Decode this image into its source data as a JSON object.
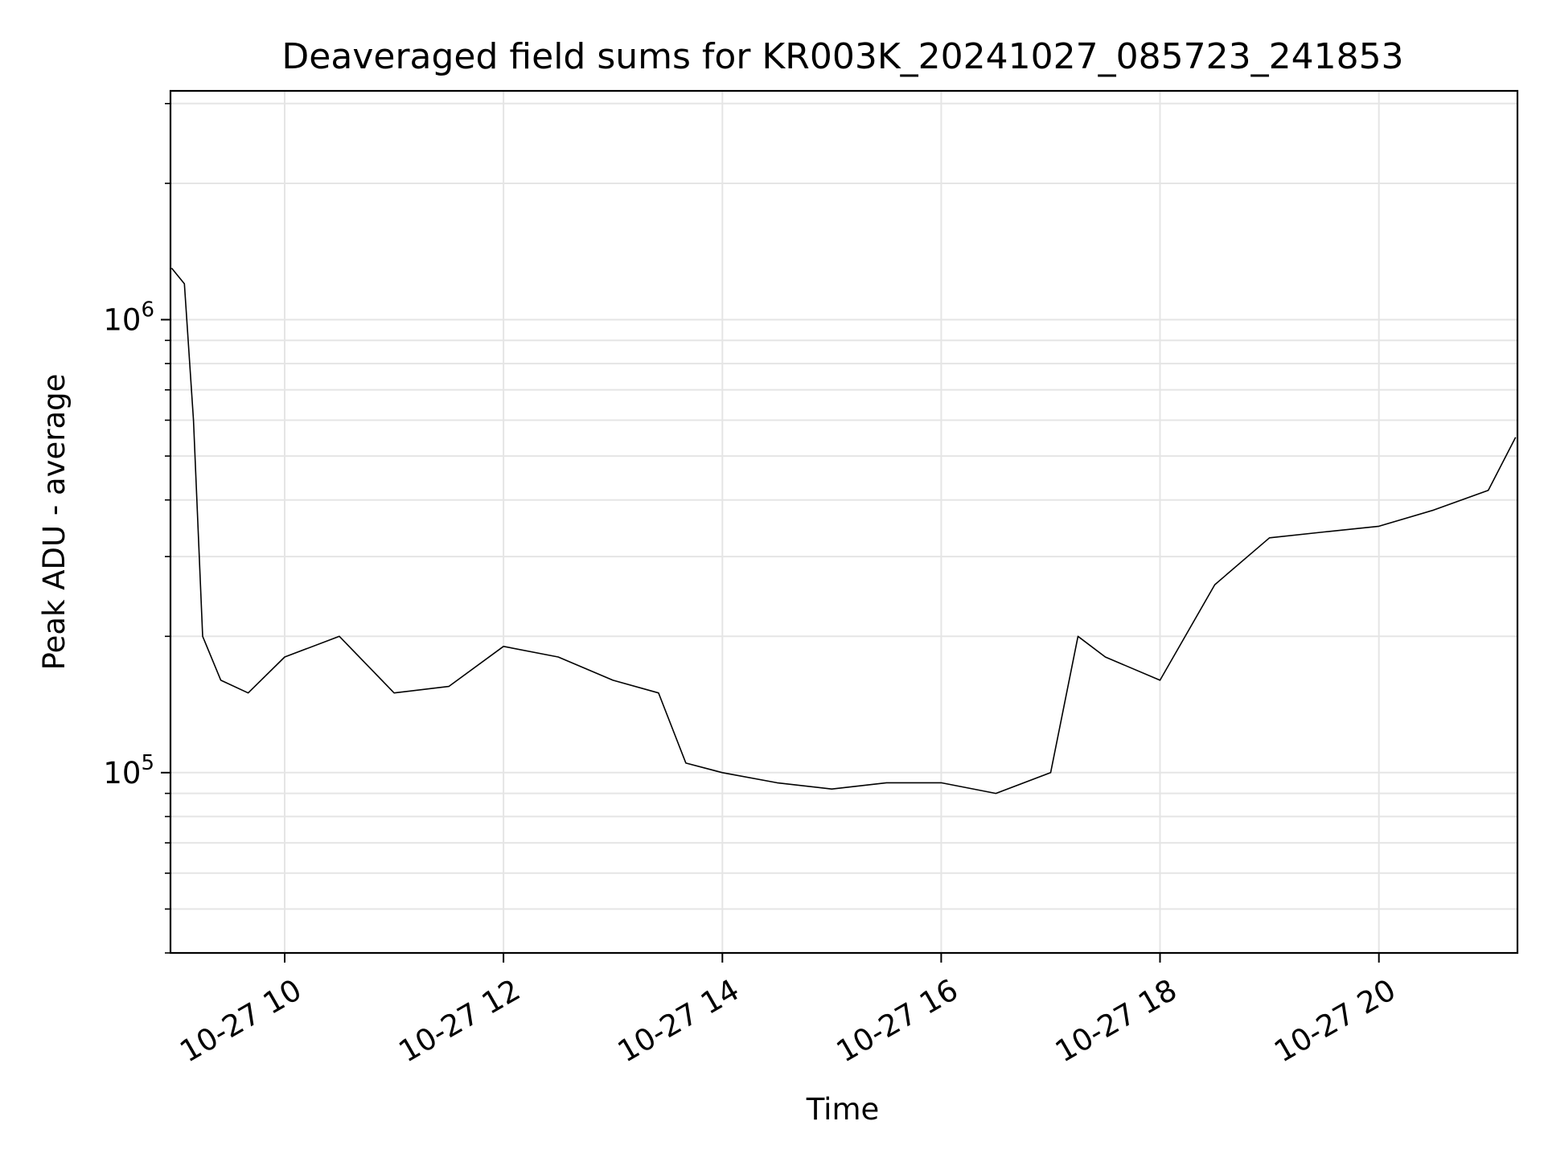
{
  "chart_data": {
    "type": "line",
    "title": "Deaveraged field sums for KR003K_20241027_085723_241853",
    "xlabel": "Time",
    "ylabel": "Peak ADU - average",
    "x_scale": "time",
    "y_scale": "log",
    "xlim": [
      "2024-10-27T08:57:23",
      "2024-10-27T21:16:00"
    ],
    "ylim": [
      40000,
      3200000
    ],
    "x_ticks": [
      {
        "value": "2024-10-27T10:00:00",
        "label": "10-27 10"
      },
      {
        "value": "2024-10-27T12:00:00",
        "label": "10-27 12"
      },
      {
        "value": "2024-10-27T14:00:00",
        "label": "10-27 14"
      },
      {
        "value": "2024-10-27T16:00:00",
        "label": "10-27 16"
      },
      {
        "value": "2024-10-27T18:00:00",
        "label": "10-27 18"
      },
      {
        "value": "2024-10-27T20:00:00",
        "label": "10-27 20"
      }
    ],
    "y_major_ticks": [
      {
        "value": 100000,
        "base": "10",
        "exp": "5"
      },
      {
        "value": 1000000,
        "base": "10",
        "exp": "6"
      }
    ],
    "y_minor_ticks": [
      40000,
      50000,
      60000,
      70000,
      80000,
      90000,
      200000,
      300000,
      400000,
      500000,
      600000,
      700000,
      800000,
      900000,
      2000000,
      3000000
    ],
    "grid": true,
    "line_color": "#000000",
    "grid_color": "#e5e5e5",
    "series": [
      {
        "x": [
          "2024-10-27T08:58:00",
          "2024-10-27T09:05:00",
          "2024-10-27T09:10:00",
          "2024-10-27T09:15:00",
          "2024-10-27T09:25:00",
          "2024-10-27T09:40:00",
          "2024-10-27T10:00:00",
          "2024-10-27T10:30:00",
          "2024-10-27T11:00:00",
          "2024-10-27T11:30:00",
          "2024-10-27T12:00:00",
          "2024-10-27T12:30:00",
          "2024-10-27T13:00:00",
          "2024-10-27T13:25:00",
          "2024-10-27T13:40:00",
          "2024-10-27T14:00:00",
          "2024-10-27T14:30:00",
          "2024-10-27T15:00:00",
          "2024-10-27T15:30:00",
          "2024-10-27T16:00:00",
          "2024-10-27T16:30:00",
          "2024-10-27T17:00:00",
          "2024-10-27T17:15:00",
          "2024-10-27T17:30:00",
          "2024-10-27T18:00:00",
          "2024-10-27T18:30:00",
          "2024-10-27T19:00:00",
          "2024-10-27T19:30:00",
          "2024-10-27T20:00:00",
          "2024-10-27T20:30:00",
          "2024-10-27T21:00:00",
          "2024-10-27T21:15:00"
        ],
        "y": [
          1300000,
          1200000,
          600000,
          200000,
          160000,
          150000,
          180000,
          200000,
          150000,
          155000,
          190000,
          180000,
          160000,
          150000,
          105000,
          100000,
          95000,
          92000,
          95000,
          95000,
          90000,
          100000,
          200000,
          180000,
          160000,
          260000,
          330000,
          340000,
          350000,
          380000,
          420000,
          550000
        ]
      }
    ]
  }
}
